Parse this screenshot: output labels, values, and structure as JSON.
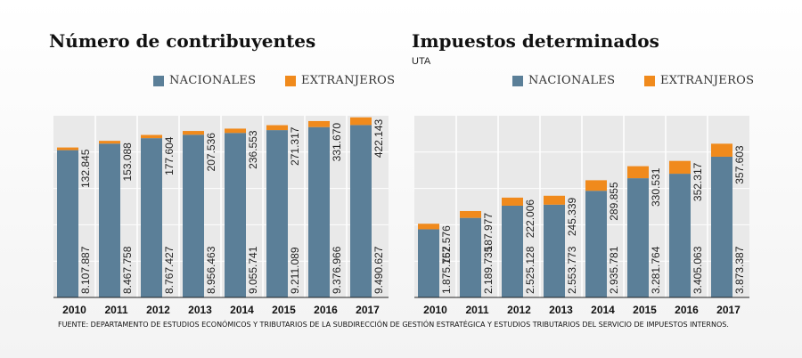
{
  "colors": {
    "nacionales": "#5b7f98",
    "extranjeros": "#f08a1c",
    "plot_bg": "#e9e9e9"
  },
  "legend": {
    "nacionales": "NACIONALES",
    "extranjeros": "EXTRANJEROS"
  },
  "source": "FUENTE: DEPARTAMENTO DE ESTUDIOS ECONÓMICOS Y TRIBUTARIOS DE LA SUBDIRECCIÓN DE GESTIÓN ESTRATÉGICA Y ESTUDIOS TRIBUTARIOS DEL SERVICIO DE IMPUESTOS INTERNOS.",
  "chart_data": [
    {
      "type": "bar",
      "stacked": true,
      "title": "Número de contribuyentes",
      "subtitle": "",
      "categories": [
        "2010",
        "2011",
        "2012",
        "2013",
        "2014",
        "2015",
        "2016",
        "2017"
      ],
      "series": [
        {
          "name": "NACIONALES",
          "values": [
            8107887,
            8467758,
            8767427,
            8956463,
            9055741,
            9211089,
            9376966,
            9490627
          ],
          "labels": [
            "8.107.887",
            "8.467.758",
            "8.767.427",
            "8.956.463",
            "9.055.741",
            "9.211.089",
            "9.376.966",
            "9.490.627"
          ]
        },
        {
          "name": "EXTRANJEROS",
          "values": [
            132845,
            153088,
            177604,
            207536,
            236553,
            271317,
            331670,
            422143
          ],
          "labels": [
            "132.845",
            "153.088",
            "177.604",
            "207.536",
            "236.553",
            "271.317",
            "331.670",
            "422.143"
          ]
        }
      ],
      "ylim": [
        0,
        10000000
      ],
      "grid": true
    },
    {
      "type": "bar",
      "stacked": true,
      "title": "Impuestos determinados",
      "subtitle": "UTA",
      "categories": [
        "2010",
        "2011",
        "2012",
        "2013",
        "2014",
        "2015",
        "2016",
        "2017"
      ],
      "series": [
        {
          "name": "NACIONALES",
          "values": [
            1875767,
            2189735,
            2525128,
            2553773,
            2935781,
            3281764,
            3405063,
            3873387
          ],
          "labels": [
            "1.875.767",
            "2.189.735",
            "2.525.128",
            "2.553.773",
            "2.935.781",
            "3.281.764",
            "3.405.063",
            "3.873.387"
          ]
        },
        {
          "name": "EXTRANJEROS",
          "values": [
            152576,
            187977,
            222006,
            245339,
            289855,
            330531,
            352317,
            357603
          ],
          "labels": [
            "152.576",
            "187.977",
            "222.006",
            "245.339",
            "289.855",
            "330.531",
            "352.317",
            "357.603"
          ]
        }
      ],
      "ylim": [
        0,
        5000000
      ],
      "grid": true
    }
  ]
}
